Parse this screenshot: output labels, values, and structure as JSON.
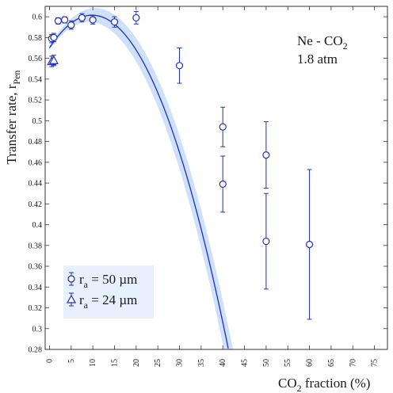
{
  "chart_data": {
    "type": "scatter",
    "xlabel": "CO2 fraction (%)",
    "ylabel": "Transfer rate, rPen",
    "xlim": [
      -1,
      78
    ],
    "ylim": [
      0.28,
      0.61
    ],
    "grid": false,
    "legend_position": "bottom-left",
    "x_ticks": [
      "0",
      "5",
      "10",
      "15",
      "20",
      "25",
      "30",
      "35",
      "40",
      "45",
      "50",
      "55",
      "60",
      "65",
      "70",
      "75"
    ],
    "y_ticks": [
      "0.28",
      "0.3",
      "0.32",
      "0.34",
      "0.36",
      "0.38",
      "0.4",
      "0.42",
      "0.44",
      "0.46",
      "0.48",
      "0.5",
      "0.52",
      "0.54",
      "0.56",
      "0.58",
      "0.6"
    ],
    "annotation": {
      "gas": "Ne - CO",
      "gas_sub": "2",
      "pressure": "1.8 atm"
    },
    "xlabel_parts": {
      "pre": "CO",
      "sub": "2",
      "post": " fraction (%)"
    },
    "ylabel_parts": {
      "pre": "Transfer rate, r",
      "sub": "Pen"
    },
    "series": [
      {
        "name": "ra = 50 µm",
        "label_parts": {
          "pre": "r",
          "sub": "a",
          "post": " = 50 µm"
        },
        "marker": "circle",
        "points": [
          {
            "x": 0.5,
            "y": 0.579,
            "err": 0.004
          },
          {
            "x": 1.0,
            "y": 0.58,
            "err": 0.004
          },
          {
            "x": 2.0,
            "y": 0.596,
            "err": 0.003
          },
          {
            "x": 3.5,
            "y": 0.597,
            "err": 0.003
          },
          {
            "x": 5.0,
            "y": 0.592,
            "err": 0.004
          },
          {
            "x": 7.5,
            "y": 0.599,
            "err": 0.004
          },
          {
            "x": 10.0,
            "y": 0.597,
            "err": 0.004
          },
          {
            "x": 15.0,
            "y": 0.595,
            "err": 0.005
          },
          {
            "x": 20.0,
            "y": 0.599,
            "err": 0.006
          },
          {
            "x": 30.0,
            "y": 0.553,
            "err": 0.017
          },
          {
            "x": 40.0,
            "y": 0.494,
            "err": 0.019
          },
          {
            "x": 40.0,
            "y": 0.439,
            "err": 0.027
          },
          {
            "x": 50.0,
            "y": 0.467,
            "err": 0.032
          },
          {
            "x": 50.0,
            "y": 0.384,
            "err": 0.046
          },
          {
            "x": 60.0,
            "y": 0.381,
            "err": 0.072
          }
        ]
      },
      {
        "name": "ra = 24 µm",
        "label_parts": {
          "pre": "r",
          "sub": "a",
          "post": " = 24 µm"
        },
        "marker": "triangle",
        "points": [
          {
            "x": 0.5,
            "y": 0.557,
            "err": 0.005
          },
          {
            "x": 1.0,
            "y": 0.558,
            "err": 0.005
          }
        ]
      }
    ],
    "fit": {
      "model": "quadratic",
      "coefficients": [
        0.57,
        0.0064,
        -0.000325
      ],
      "band_halfwidth": [
        0.002,
        0.00047
      ]
    },
    "colors": {
      "marker": "#1f2fbf",
      "fit_line": "#1f2fbf",
      "band": "#cfe0fb",
      "legend_bg": "#e9f0fd",
      "axis": "#333333"
    }
  }
}
